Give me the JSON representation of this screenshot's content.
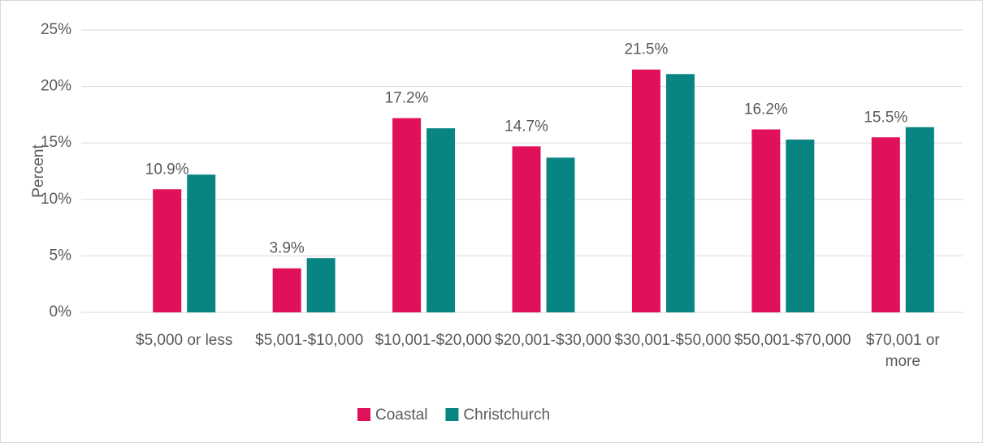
{
  "chart_data": {
    "type": "bar",
    "categories": [
      "$5,000 or less",
      "$5,001-$10,000",
      "$10,001-$20,000",
      "$20,001-$30,000",
      "$30,001-$50,000",
      "$50,001-$70,000",
      "$70,001 or more"
    ],
    "series": [
      {
        "name": "Coastal",
        "color": "#e0115a",
        "values": [
          10.9,
          3.9,
          17.2,
          14.7,
          21.5,
          16.2,
          15.5
        ],
        "value_labels": [
          "10.9%",
          "3.9%",
          "17.2%",
          "14.7%",
          "21.5%",
          "16.2%",
          "15.5%"
        ]
      },
      {
        "name": "Christchurch",
        "color": "#088583",
        "values": [
          12.2,
          4.8,
          16.3,
          13.7,
          21.1,
          15.3,
          16.4
        ]
      }
    ],
    "y_label": "Percent",
    "ylim": [
      0,
      25
    ],
    "yticks": [
      {
        "value": 0,
        "label": "0%"
      },
      {
        "value": 5,
        "label": "5%"
      },
      {
        "value": 10,
        "label": "10%"
      },
      {
        "value": 15,
        "label": "15%"
      },
      {
        "value": 20,
        "label": "20%"
      },
      {
        "value": 25,
        "label": "25%"
      }
    ],
    "grid": true,
    "legend": "bottom"
  }
}
